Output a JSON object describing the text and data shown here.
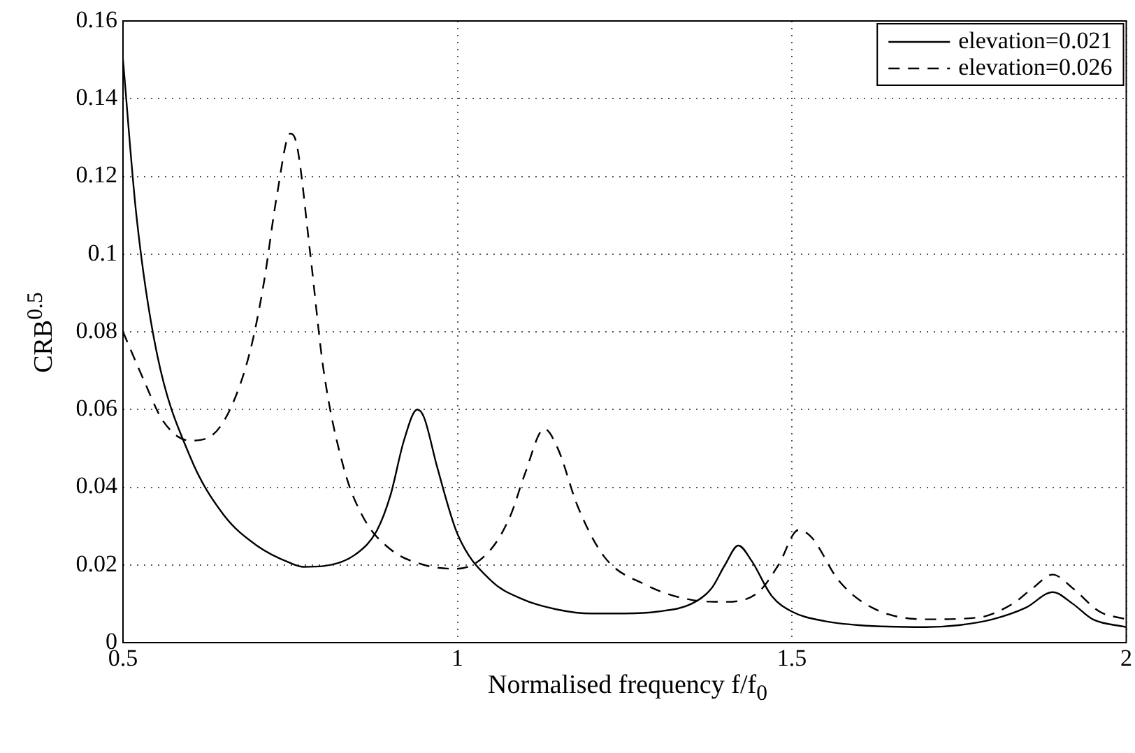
{
  "chart_data": {
    "type": "line",
    "xlabel": "Normalised frequency f/f$_{0}$",
    "ylabel": "CRB$^{0.5}$",
    "xlim": [
      0.5,
      2
    ],
    "xticks": [
      0.5,
      1,
      1.5,
      2
    ],
    "ylim": [
      0,
      0.16
    ],
    "yticks": [
      0,
      0.02,
      0.04,
      0.06,
      0.08,
      0.1,
      0.12,
      0.14,
      0.16
    ],
    "grid": true,
    "legend": "top right",
    "marker": "none",
    "series": [
      {
        "name": "elevation=0.021",
        "color": "#000000",
        "line_style": "solid",
        "x": [
          0.5,
          0.52,
          0.55,
          0.6,
          0.65,
          0.7,
          0.75,
          0.77,
          0.8,
          0.85,
          0.88,
          0.9,
          0.92,
          0.94,
          0.95,
          0.97,
          1.0,
          1.05,
          1.1,
          1.15,
          1.2,
          1.25,
          1.3,
          1.35,
          1.38,
          1.4,
          1.42,
          1.44,
          1.47,
          1.5,
          1.55,
          1.6,
          1.7,
          1.75,
          1.8,
          1.85,
          1.89,
          1.92,
          1.95,
          2.0
        ],
        "values": [
          0.15,
          0.11,
          0.075,
          0.048,
          0.033,
          0.025,
          0.0205,
          0.0195,
          0.0197,
          0.023,
          0.029,
          0.038,
          0.052,
          0.06,
          0.058,
          0.045,
          0.028,
          0.016,
          0.011,
          0.0085,
          0.0075,
          0.0075,
          0.008,
          0.01,
          0.014,
          0.02,
          0.025,
          0.021,
          0.012,
          0.008,
          0.0055,
          0.0045,
          0.004,
          0.0045,
          0.006,
          0.009,
          0.013,
          0.01,
          0.006,
          0.004
        ]
      },
      {
        "name": "elevation=0.026",
        "color": "#000000",
        "line_style": "dashed",
        "x": [
          0.5,
          0.53,
          0.56,
          0.6,
          0.63,
          0.66,
          0.69,
          0.71,
          0.73,
          0.75,
          0.76,
          0.78,
          0.8,
          0.83,
          0.86,
          0.9,
          0.95,
          1.0,
          1.05,
          1.08,
          1.1,
          1.13,
          1.15,
          1.18,
          1.22,
          1.28,
          1.35,
          1.4,
          1.45,
          1.48,
          1.51,
          1.53,
          1.57,
          1.62,
          1.7,
          1.78,
          1.83,
          1.86,
          1.89,
          1.92,
          1.96,
          2.0
        ],
        "values": [
          0.08,
          0.068,
          0.057,
          0.052,
          0.053,
          0.06,
          0.075,
          0.092,
          0.115,
          0.131,
          0.128,
          0.1,
          0.07,
          0.045,
          0.032,
          0.024,
          0.02,
          0.019,
          0.024,
          0.033,
          0.043,
          0.055,
          0.05,
          0.035,
          0.022,
          0.015,
          0.011,
          0.0105,
          0.013,
          0.02,
          0.029,
          0.027,
          0.016,
          0.009,
          0.006,
          0.0065,
          0.01,
          0.014,
          0.0175,
          0.014,
          0.008,
          0.006
        ]
      }
    ]
  }
}
